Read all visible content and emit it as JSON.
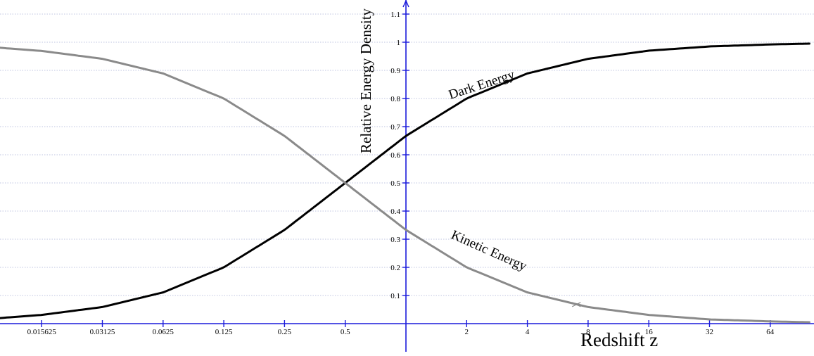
{
  "chart_data": {
    "type": "line",
    "xlabel": "Redshift z",
    "ylabel": "Relative Energy Density",
    "x_scale": "log2",
    "xlim": [
      0.009,
      100
    ],
    "ylim": [
      -0.12,
      1.12
    ],
    "grid": true,
    "legend": "none",
    "x_ticks": [
      {
        "value": 0.015625,
        "label": "0.015625"
      },
      {
        "value": 0.03125,
        "label": "0.03125"
      },
      {
        "value": 0.0625,
        "label": "0.0625"
      },
      {
        "value": 0.125,
        "label": "0.125"
      },
      {
        "value": 0.25,
        "label": "0.25"
      },
      {
        "value": 0.5,
        "label": "0.5"
      },
      {
        "value": 2,
        "label": "2"
      },
      {
        "value": 4,
        "label": "4"
      },
      {
        "value": 8,
        "label": "8"
      },
      {
        "value": 16,
        "label": "16"
      },
      {
        "value": 32,
        "label": "32"
      },
      {
        "value": 64,
        "label": "64"
      }
    ],
    "y_ticks": [
      {
        "value": 0.1,
        "label": "0.1"
      },
      {
        "value": 0.2,
        "label": "0.2"
      },
      {
        "value": 0.3,
        "label": "0.3"
      },
      {
        "value": 0.4,
        "label": "0.4"
      },
      {
        "value": 0.5,
        "label": "0.5"
      },
      {
        "value": 0.6,
        "label": "0.6"
      },
      {
        "value": 0.7,
        "label": "0.7"
      },
      {
        "value": 0.8,
        "label": "0.8"
      },
      {
        "value": 0.9,
        "label": "0.9"
      },
      {
        "value": 1,
        "label": "1"
      },
      {
        "value": 1.1,
        "label": "1.1"
      }
    ],
    "series": [
      {
        "name": "Dark Energy",
        "color": "#000000",
        "x": [
          0.009,
          0.015625,
          0.03125,
          0.0625,
          0.125,
          0.25,
          0.5,
          1,
          2,
          4,
          8,
          16,
          32,
          64,
          100
        ],
        "y": [
          0.018,
          0.031,
          0.059,
          0.111,
          0.2,
          0.333,
          0.5,
          0.667,
          0.8,
          0.889,
          0.941,
          0.97,
          0.985,
          0.992,
          0.995
        ]
      },
      {
        "name": "Kinetic Energy",
        "color": "#8a8a8a",
        "x": [
          0.009,
          0.015625,
          0.03125,
          0.0625,
          0.125,
          0.25,
          0.5,
          1,
          2,
          4,
          8,
          16,
          32,
          64,
          100
        ],
        "y": [
          0.982,
          0.969,
          0.941,
          0.889,
          0.8,
          0.667,
          0.5,
          0.333,
          0.2,
          0.111,
          0.059,
          0.031,
          0.015,
          0.008,
          0.005
        ]
      }
    ]
  }
}
